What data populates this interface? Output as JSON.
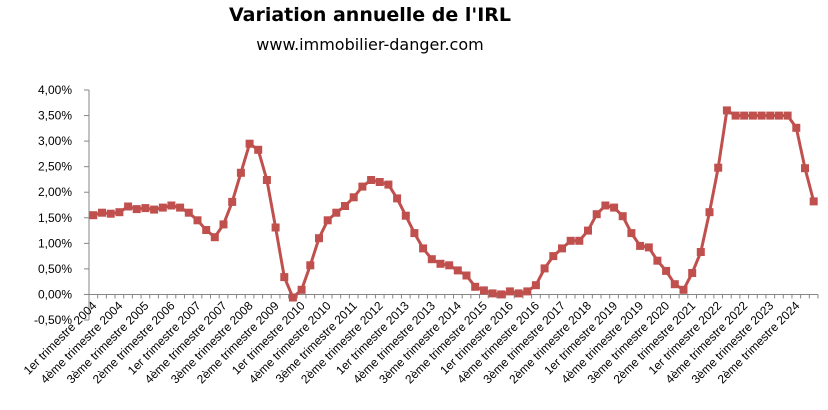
{
  "chart_data": {
    "type": "line",
    "title": "Variation annuelle de l'IRL",
    "subtitle": "www.immobilier-danger.com",
    "xlabel": "",
    "ylabel": "",
    "ylim": [
      -0.5,
      4.0
    ],
    "y_ticks": [
      "-0,50%",
      "0,00%",
      "0,50%",
      "1,00%",
      "1,50%",
      "2,00%",
      "2,50%",
      "3,00%",
      "3,50%",
      "4,00%"
    ],
    "x_tick_labels": [
      "1er trimestre 2004",
      "4ème trimestre 2004",
      "3ème trimestre 2005",
      "2ème trimestre 2006",
      "1er trimestre 2007",
      "4ème trimestre 2007",
      "3ème trimestre 2008",
      "2ème trimestre 2009",
      "1er trimestre 2010",
      "4ème trimestre 2010",
      "3ème trimestre 2011",
      "2ème trimestre 2012",
      "1er trimestre 2013",
      "4ème trimestre 2013",
      "3ème trimestre 2014",
      "2ème trimestre 2015",
      "1er trimestre 2016",
      "4ème trimestre 2016",
      "3ème trimestre 2017",
      "2ème trimestre 2018",
      "1er trimestre 2019",
      "4ème trimestre 2019",
      "3ème trimestre 2020",
      "2ème trimestre 2021",
      "1er trimestre 2022",
      "4ème trimestre 2022",
      "3ème trimestre 2023",
      "2ème trimestre 2024"
    ],
    "color": "#c0504d",
    "grid": false,
    "series": [
      {
        "values": [
          1.55,
          1.6,
          1.58,
          1.61,
          1.72,
          1.67,
          1.69,
          1.66,
          1.7,
          1.74,
          1.7,
          1.6,
          1.45,
          1.26,
          1.12,
          1.37,
          1.81,
          2.38,
          2.95,
          2.83,
          2.24,
          1.31,
          0.34,
          -0.06,
          0.09,
          0.57,
          1.1,
          1.45,
          1.6,
          1.73,
          1.9,
          2.11,
          2.24,
          2.2,
          2.15,
          1.88,
          1.54,
          1.2,
          0.9,
          0.69,
          0.6,
          0.57,
          0.47,
          0.37,
          0.15,
          0.08,
          0.02,
          0.0,
          0.06,
          0.02,
          0.06,
          0.18,
          0.51,
          0.75,
          0.9,
          1.05,
          1.05,
          1.25,
          1.57,
          1.74,
          1.7,
          1.53,
          1.2,
          0.95,
          0.92,
          0.66,
          0.46,
          0.2,
          0.09,
          0.42,
          0.83,
          1.61,
          2.48,
          3.6,
          3.5,
          3.5,
          3.5,
          3.5,
          3.5,
          3.5,
          3.5,
          3.26,
          2.47,
          1.82
        ]
      }
    ]
  }
}
